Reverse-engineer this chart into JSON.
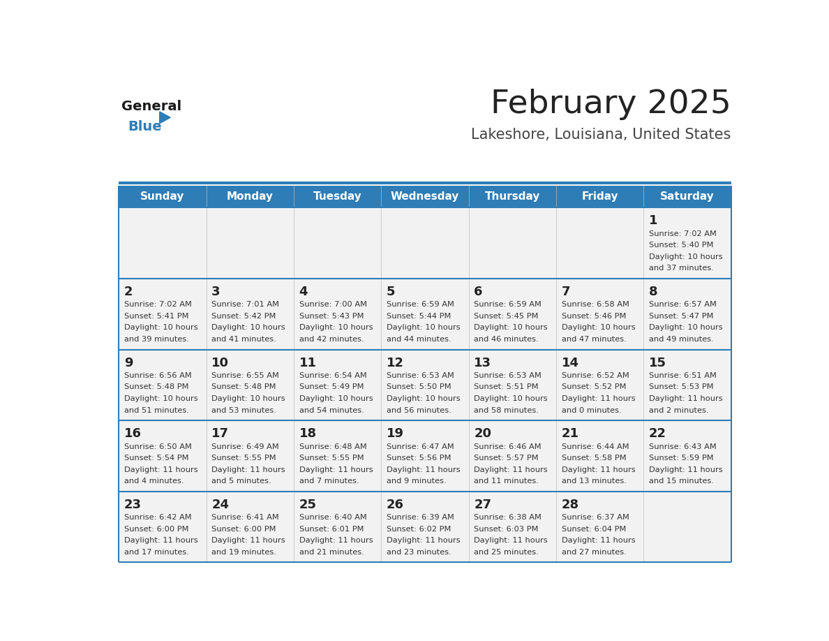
{
  "title": "February 2025",
  "subtitle": "Lakeshore, Louisiana, United States",
  "header_bg": "#2E7DB6",
  "header_text": "#FFFFFF",
  "row_bg_odd": "#F2F2F2",
  "row_bg_even": "#FFFFFF",
  "border_color": "#2E7DB6",
  "text_color": "#333333",
  "day_headers": [
    "Sunday",
    "Monday",
    "Tuesday",
    "Wednesday",
    "Thursday",
    "Friday",
    "Saturday"
  ],
  "calendar_data": [
    [
      null,
      null,
      null,
      null,
      null,
      null,
      {
        "day": "1",
        "sunrise": "7:02 AM",
        "sunset": "5:40 PM",
        "daylight1": "10 hours",
        "daylight2": "and 37 minutes."
      }
    ],
    [
      {
        "day": "2",
        "sunrise": "7:02 AM",
        "sunset": "5:41 PM",
        "daylight1": "10 hours",
        "daylight2": "and 39 minutes."
      },
      {
        "day": "3",
        "sunrise": "7:01 AM",
        "sunset": "5:42 PM",
        "daylight1": "10 hours",
        "daylight2": "and 41 minutes."
      },
      {
        "day": "4",
        "sunrise": "7:00 AM",
        "sunset": "5:43 PM",
        "daylight1": "10 hours",
        "daylight2": "and 42 minutes."
      },
      {
        "day": "5",
        "sunrise": "6:59 AM",
        "sunset": "5:44 PM",
        "daylight1": "10 hours",
        "daylight2": "and 44 minutes."
      },
      {
        "day": "6",
        "sunrise": "6:59 AM",
        "sunset": "5:45 PM",
        "daylight1": "10 hours",
        "daylight2": "and 46 minutes."
      },
      {
        "day": "7",
        "sunrise": "6:58 AM",
        "sunset": "5:46 PM",
        "daylight1": "10 hours",
        "daylight2": "and 47 minutes."
      },
      {
        "day": "8",
        "sunrise": "6:57 AM",
        "sunset": "5:47 PM",
        "daylight1": "10 hours",
        "daylight2": "and 49 minutes."
      }
    ],
    [
      {
        "day": "9",
        "sunrise": "6:56 AM",
        "sunset": "5:48 PM",
        "daylight1": "10 hours",
        "daylight2": "and 51 minutes."
      },
      {
        "day": "10",
        "sunrise": "6:55 AM",
        "sunset": "5:48 PM",
        "daylight1": "10 hours",
        "daylight2": "and 53 minutes."
      },
      {
        "day": "11",
        "sunrise": "6:54 AM",
        "sunset": "5:49 PM",
        "daylight1": "10 hours",
        "daylight2": "and 54 minutes."
      },
      {
        "day": "12",
        "sunrise": "6:53 AM",
        "sunset": "5:50 PM",
        "daylight1": "10 hours",
        "daylight2": "and 56 minutes."
      },
      {
        "day": "13",
        "sunrise": "6:53 AM",
        "sunset": "5:51 PM",
        "daylight1": "10 hours",
        "daylight2": "and 58 minutes."
      },
      {
        "day": "14",
        "sunrise": "6:52 AM",
        "sunset": "5:52 PM",
        "daylight1": "11 hours",
        "daylight2": "and 0 minutes."
      },
      {
        "day": "15",
        "sunrise": "6:51 AM",
        "sunset": "5:53 PM",
        "daylight1": "11 hours",
        "daylight2": "and 2 minutes."
      }
    ],
    [
      {
        "day": "16",
        "sunrise": "6:50 AM",
        "sunset": "5:54 PM",
        "daylight1": "11 hours",
        "daylight2": "and 4 minutes."
      },
      {
        "day": "17",
        "sunrise": "6:49 AM",
        "sunset": "5:55 PM",
        "daylight1": "11 hours",
        "daylight2": "and 5 minutes."
      },
      {
        "day": "18",
        "sunrise": "6:48 AM",
        "sunset": "5:55 PM",
        "daylight1": "11 hours",
        "daylight2": "and 7 minutes."
      },
      {
        "day": "19",
        "sunrise": "6:47 AM",
        "sunset": "5:56 PM",
        "daylight1": "11 hours",
        "daylight2": "and 9 minutes."
      },
      {
        "day": "20",
        "sunrise": "6:46 AM",
        "sunset": "5:57 PM",
        "daylight1": "11 hours",
        "daylight2": "and 11 minutes."
      },
      {
        "day": "21",
        "sunrise": "6:44 AM",
        "sunset": "5:58 PM",
        "daylight1": "11 hours",
        "daylight2": "and 13 minutes."
      },
      {
        "day": "22",
        "sunrise": "6:43 AM",
        "sunset": "5:59 PM",
        "daylight1": "11 hours",
        "daylight2": "and 15 minutes."
      }
    ],
    [
      {
        "day": "23",
        "sunrise": "6:42 AM",
        "sunset": "6:00 PM",
        "daylight1": "11 hours",
        "daylight2": "and 17 minutes."
      },
      {
        "day": "24",
        "sunrise": "6:41 AM",
        "sunset": "6:00 PM",
        "daylight1": "11 hours",
        "daylight2": "and 19 minutes."
      },
      {
        "day": "25",
        "sunrise": "6:40 AM",
        "sunset": "6:01 PM",
        "daylight1": "11 hours",
        "daylight2": "and 21 minutes."
      },
      {
        "day": "26",
        "sunrise": "6:39 AM",
        "sunset": "6:02 PM",
        "daylight1": "11 hours",
        "daylight2": "and 23 minutes."
      },
      {
        "day": "27",
        "sunrise": "6:38 AM",
        "sunset": "6:03 PM",
        "daylight1": "11 hours",
        "daylight2": "and 25 minutes."
      },
      {
        "day": "28",
        "sunrise": "6:37 AM",
        "sunset": "6:04 PM",
        "daylight1": "11 hours",
        "daylight2": "and 27 minutes."
      },
      null
    ]
  ],
  "title_fontsize": 34,
  "subtitle_fontsize": 15,
  "header_fontsize": 11,
  "day_number_fontsize": 12,
  "cell_text_fontsize": 8.2
}
